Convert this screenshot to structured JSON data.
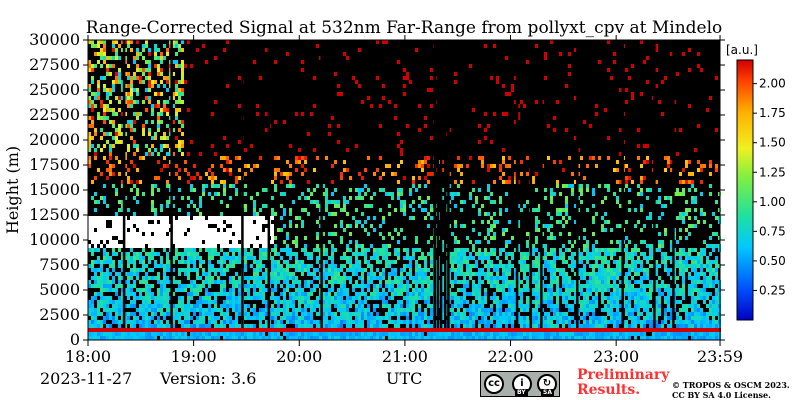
{
  "chart_data": {
    "type": "heatmap",
    "title": "Range-Corrected Signal at 532nm Far-Range from pollyxt_cpv at Mindelo",
    "ylabel": "Height (m)",
    "xlabel": "UTC",
    "x_ticks": [
      "18:00",
      "19:00",
      "20:00",
      "21:00",
      "22:00",
      "23:00",
      "23:59"
    ],
    "y_ticks": [
      0,
      2500,
      5000,
      7500,
      10000,
      12500,
      15000,
      17500,
      20000,
      22500,
      25000,
      27500,
      30000
    ],
    "ylim": [
      0,
      30000
    ],
    "xlim_hours": [
      18.0,
      23.983
    ],
    "colorbar": {
      "unit": "[a.u.]",
      "ticks": [
        0.25,
        0.5,
        0.75,
        1.0,
        1.25,
        1.5,
        1.75,
        2.0
      ],
      "tick_labels": [
        "0.25",
        "0.50",
        "0.75",
        "1.00",
        "1.25",
        "1.50",
        "1.75",
        "2.00"
      ],
      "range": [
        0.0,
        2.2
      ],
      "colormap": "jet"
    },
    "features": [
      {
        "name": "boundary layer",
        "height_range": [
          1000,
          1300
        ],
        "value": 2.2
      },
      {
        "name": "aerosol layer",
        "height_range": [
          1300,
          9500
        ],
        "value": 0.6
      },
      {
        "name": "cloud layer",
        "time_range": [
          18.0,
          19.75
        ],
        "height_range": [
          9500,
          12500
        ],
        "value": 2.2
      }
    ],
    "data_gaps_hours": [
      18.33,
      18.78,
      19.45,
      19.7,
      20.2,
      21.27,
      21.3,
      21.33,
      21.37,
      21.4,
      22.05,
      22.18,
      22.28,
      22.62,
      23.05,
      23.35,
      23.53
    ]
  },
  "footer": {
    "date": "2023-11-27",
    "version": "Version: 3.6",
    "timezone": "UTC",
    "preliminary_line1": "Preliminary",
    "preliminary_line2": "Results.",
    "copyright_line1": "© TROPOS & OSCM 2023.",
    "copyright_line2": "CC BY SA 4.0 License.",
    "license_badge": {
      "cc": "cc",
      "by": "BY",
      "sa": "SA"
    }
  },
  "colors": {
    "background": "#000000",
    "cloud": "#ffffff",
    "prelim": "#ff3030"
  }
}
